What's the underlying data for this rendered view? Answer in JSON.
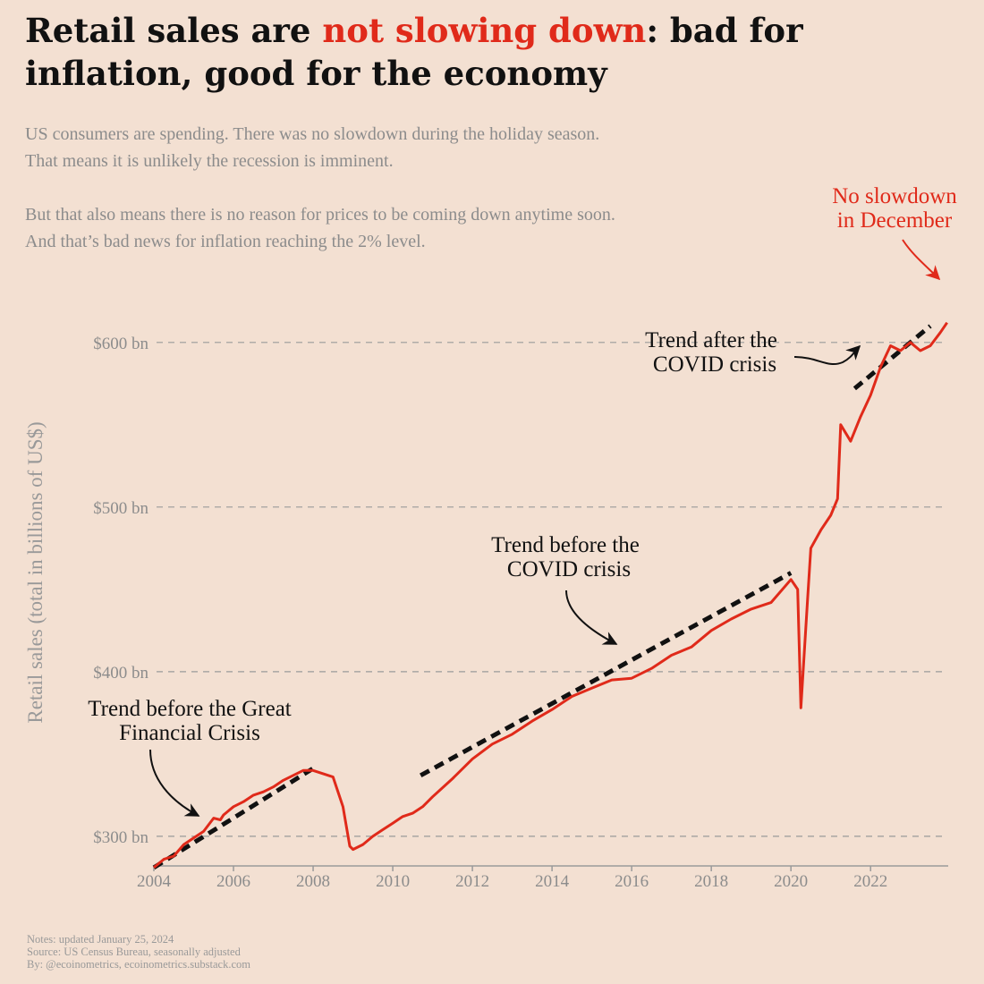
{
  "header": {
    "title_part1": "Retail sales are ",
    "title_highlight": "not slowing down",
    "title_part2": ": bad for inflation, good for the economy",
    "subtitle_lines": [
      "US consumers are spending. There was no slowdown during the holiday season.",
      "That means it is unlikely the recession is imminent.",
      "But that also means there is no reason for prices to be coming down anytime soon.",
      "And that’s bad news for inflation reaching the 2% level."
    ]
  },
  "colors": {
    "background": "#f3e0d2",
    "series": "#e02a1a",
    "trend": "#111111",
    "grid": "#9a9a9a",
    "muted": "#8c8c8c"
  },
  "chart_data": {
    "type": "line",
    "ylabel": "Retail sales (total in billions of US$)",
    "xlim": [
      2004,
      2023.95
    ],
    "ylim": [
      282,
      645
    ],
    "y_ticks": [
      300,
      400,
      500,
      600
    ],
    "y_tick_labels": [
      "$300 bn",
      "$400 bn",
      "$500 bn",
      "$600 bn"
    ],
    "x_ticks": [
      2004,
      2006,
      2008,
      2010,
      2012,
      2014,
      2016,
      2018,
      2020,
      2022
    ],
    "x_tick_labels": [
      "2004",
      "2006",
      "2008",
      "2010",
      "2012",
      "2014",
      "2016",
      "2018",
      "2020",
      "2022"
    ],
    "grid": "horizontal dashed",
    "series": [
      {
        "x": [
          2004.0,
          2004.25,
          2004.5,
          2004.75,
          2005.0,
          2005.25,
          2005.5,
          2005.67,
          2005.75,
          2006.0,
          2006.25,
          2006.5,
          2006.75,
          2007.0,
          2007.25,
          2007.5,
          2007.75,
          2008.0,
          2008.25,
          2008.5,
          2008.75,
          2008.92,
          2009.0,
          2009.25,
          2009.5,
          2009.75,
          2010.0,
          2010.25,
          2010.5,
          2010.75,
          2011.0,
          2011.5,
          2012.0,
          2012.5,
          2013.0,
          2013.5,
          2014.0,
          2014.5,
          2015.0,
          2015.5,
          2016.0,
          2016.5,
          2017.0,
          2017.5,
          2018.0,
          2018.5,
          2019.0,
          2019.5,
          2020.0,
          2020.17,
          2020.25,
          2020.42,
          2020.5,
          2020.75,
          2021.0,
          2021.17,
          2021.25,
          2021.5,
          2021.75,
          2022.0,
          2022.25,
          2022.5,
          2022.75,
          2023.0,
          2023.25,
          2023.5,
          2023.75,
          2023.92
        ],
        "values": [
          281,
          286,
          288,
          295,
          299,
          303,
          311,
          310,
          313,
          318,
          321,
          325,
          327,
          330,
          334,
          337,
          340,
          340,
          338,
          336,
          318,
          294,
          292,
          295,
          300,
          304,
          308,
          312,
          314,
          318,
          324,
          335,
          347,
          356,
          362,
          370,
          377,
          385,
          390,
          395,
          396,
          402,
          410,
          415,
          425,
          432,
          438,
          442,
          456,
          450,
          378,
          445,
          475,
          486,
          495,
          505,
          550,
          540,
          555,
          568,
          585,
          598,
          595,
          600,
          595,
          598,
          606,
          612
        ]
      }
    ],
    "trend_lines": [
      {
        "x": [
          2004.0,
          2008.05
        ],
        "values": [
          281,
          342
        ]
      },
      {
        "x": [
          2010.7,
          2020.0
        ],
        "values": [
          337,
          460
        ]
      },
      {
        "x": [
          2021.6,
          2023.5
        ],
        "values": [
          572,
          610
        ]
      }
    ],
    "annotations": [
      {
        "lines": [
          "Trend before the Great",
          "Financial Crisis"
        ]
      },
      {
        "lines": [
          "Trend before the",
          "COVID crisis"
        ]
      },
      {
        "lines": [
          "Trend after the",
          "COVID crisis"
        ]
      },
      {
        "lines": [
          "No slowdown",
          "in December"
        ]
      }
    ]
  },
  "footer": {
    "lines": [
      "Notes: updated January 25, 2024",
      "Source: US Census Bureau, seasonally adjusted",
      "By: @ecoinometrics, ecoinometrics.substack.com"
    ]
  }
}
